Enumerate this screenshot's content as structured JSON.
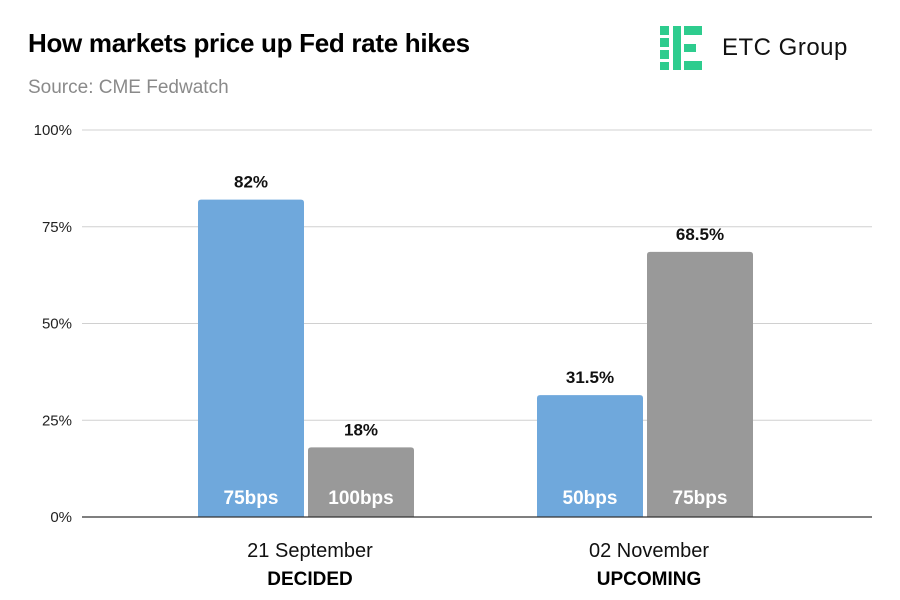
{
  "header": {
    "title": "How markets price up Fed rate hikes",
    "subtitle": "Source: CME Fedwatch"
  },
  "logo": {
    "text": "ETC Group",
    "icon": "etc-group-logo-icon",
    "color": "#2ecc8e"
  },
  "colors": {
    "blue": "#6fa8dc",
    "gray": "#999999",
    "grid": "#d0d0d0",
    "axis": "#333333"
  },
  "chart_data": {
    "type": "bar",
    "title": "How markets price up Fed rate hikes",
    "subtitle": "Source: CME Fedwatch",
    "xlabel": "",
    "ylabel": "",
    "ylim": [
      0,
      100
    ],
    "yticks": [
      0,
      25,
      50,
      75,
      100
    ],
    "ytick_labels": [
      "0%",
      "25%",
      "50%",
      "75%",
      "100%"
    ],
    "grid": true,
    "categories": [
      {
        "label": "21 September",
        "sublabel": "DECIDED",
        "bars": [
          {
            "label": "75bps",
            "value": 82,
            "value_label": "82%",
            "color": "#6fa8dc"
          },
          {
            "label": "100bps",
            "value": 18,
            "value_label": "18%",
            "color": "#999999"
          }
        ]
      },
      {
        "label": "02 November",
        "sublabel": "UPCOMING",
        "bars": [
          {
            "label": "50bps",
            "value": 31.5,
            "value_label": "31.5%",
            "color": "#6fa8dc"
          },
          {
            "label": "75bps",
            "value": 68.5,
            "value_label": "68.5%",
            "color": "#999999"
          }
        ]
      }
    ]
  }
}
